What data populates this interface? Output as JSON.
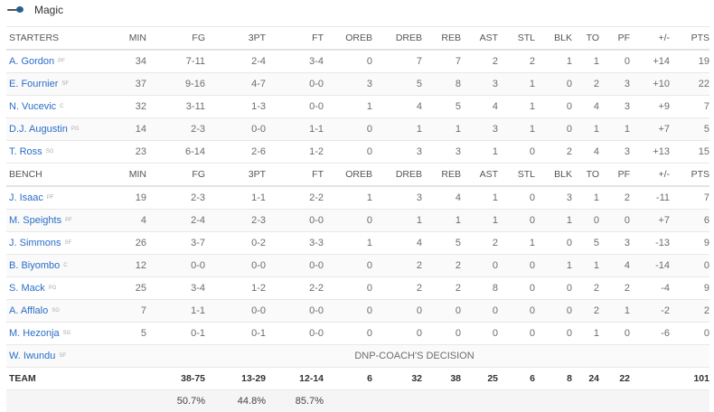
{
  "team": {
    "name": "Magic",
    "logo_icon": "magic-logo-icon"
  },
  "columns": [
    "MIN",
    "FG",
    "3PT",
    "FT",
    "OREB",
    "DREB",
    "REB",
    "AST",
    "STL",
    "BLK",
    "TO",
    "PF",
    "+/-",
    "PTS"
  ],
  "starters_label": "STARTERS",
  "bench_label": "BENCH",
  "starters": [
    {
      "name": "A. Gordon",
      "pos": "PF",
      "stats": [
        "34",
        "7-11",
        "2-4",
        "3-4",
        "0",
        "7",
        "7",
        "2",
        "2",
        "1",
        "1",
        "0",
        "+14",
        "19"
      ]
    },
    {
      "name": "E. Fournier",
      "pos": "SF",
      "stats": [
        "37",
        "9-16",
        "4-7",
        "0-0",
        "3",
        "5",
        "8",
        "3",
        "1",
        "0",
        "2",
        "3",
        "+10",
        "22"
      ]
    },
    {
      "name": "N. Vucevic",
      "pos": "C",
      "stats": [
        "32",
        "3-11",
        "1-3",
        "0-0",
        "1",
        "4",
        "5",
        "4",
        "1",
        "0",
        "4",
        "3",
        "+9",
        "7"
      ]
    },
    {
      "name": "D.J. Augustin",
      "pos": "PG",
      "stats": [
        "14",
        "2-3",
        "0-0",
        "1-1",
        "0",
        "1",
        "1",
        "3",
        "1",
        "0",
        "1",
        "1",
        "+7",
        "5"
      ]
    },
    {
      "name": "T. Ross",
      "pos": "SG",
      "stats": [
        "23",
        "6-14",
        "2-6",
        "1-2",
        "0",
        "3",
        "3",
        "1",
        "0",
        "2",
        "4",
        "3",
        "+13",
        "15"
      ]
    }
  ],
  "bench": [
    {
      "name": "J. Isaac",
      "pos": "PF",
      "stats": [
        "19",
        "2-3",
        "1-1",
        "2-2",
        "1",
        "3",
        "4",
        "1",
        "0",
        "3",
        "1",
        "2",
        "-11",
        "7"
      ]
    },
    {
      "name": "M. Speights",
      "pos": "PF",
      "stats": [
        "4",
        "2-4",
        "2-3",
        "0-0",
        "0",
        "1",
        "1",
        "1",
        "0",
        "1",
        "0",
        "0",
        "+7",
        "6"
      ]
    },
    {
      "name": "J. Simmons",
      "pos": "SF",
      "stats": [
        "26",
        "3-7",
        "0-2",
        "3-3",
        "1",
        "4",
        "5",
        "2",
        "1",
        "0",
        "5",
        "3",
        "-13",
        "9"
      ]
    },
    {
      "name": "B. Biyombo",
      "pos": "C",
      "stats": [
        "12",
        "0-0",
        "0-0",
        "0-0",
        "0",
        "2",
        "2",
        "0",
        "0",
        "1",
        "1",
        "4",
        "-14",
        "0"
      ]
    },
    {
      "name": "S. Mack",
      "pos": "PG",
      "stats": [
        "25",
        "3-4",
        "1-2",
        "2-2",
        "0",
        "2",
        "2",
        "8",
        "0",
        "0",
        "2",
        "2",
        "-4",
        "9"
      ]
    },
    {
      "name": "A. Afflalo",
      "pos": "SG",
      "stats": [
        "7",
        "1-1",
        "0-0",
        "0-0",
        "0",
        "0",
        "0",
        "0",
        "0",
        "0",
        "2",
        "1",
        "-2",
        "2"
      ]
    },
    {
      "name": "M. Hezonja",
      "pos": "SG",
      "stats": [
        "5",
        "0-1",
        "0-1",
        "0-0",
        "0",
        "0",
        "0",
        "0",
        "0",
        "0",
        "1",
        "0",
        "-6",
        "0"
      ]
    },
    {
      "name": "W. Iwundu",
      "pos": "SF",
      "dnp": "DNP-COACH'S DECISION"
    }
  ],
  "totals": {
    "label": "TEAM",
    "stats": [
      "",
      "38-75",
      "13-29",
      "12-14",
      "6",
      "32",
      "38",
      "25",
      "6",
      "8",
      "24",
      "22",
      "",
      "101"
    ]
  },
  "percentages": [
    "",
    "50.7%",
    "44.8%",
    "85.7%",
    "",
    "",
    "",
    "",
    "",
    "",
    "",
    "",
    "",
    ""
  ]
}
